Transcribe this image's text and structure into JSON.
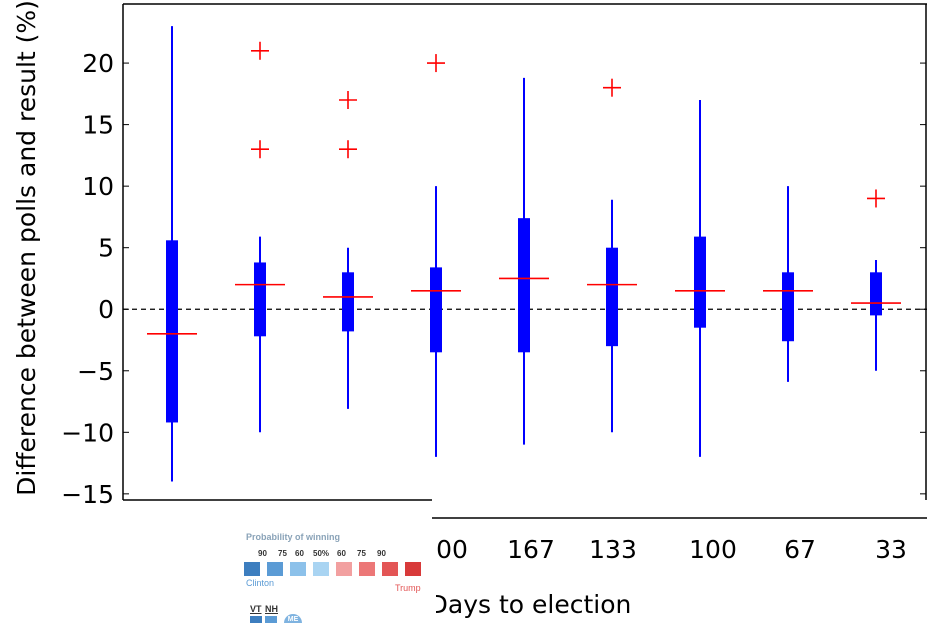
{
  "chart_data": {
    "type": "box",
    "xlabel": "Days to election",
    "ylabel": "Difference between polls and result (%)",
    "x_tick_labels": [
      "00",
      "167",
      "133",
      "100",
      "67",
      "33"
    ],
    "y_ticks": [
      -15,
      -10,
      -5,
      0,
      5,
      10,
      15,
      20
    ],
    "y_tick_labels": [
      "−15",
      "−10",
      "−5",
      "0",
      "5",
      "10",
      "15",
      "20"
    ],
    "ylim": [
      -15.5,
      24.8
    ],
    "xlim": [
      0,
      9
    ],
    "reference_line": {
      "y": 0,
      "style": "dashed"
    },
    "colors": {
      "box": "#0000ff",
      "median": "#ff0000",
      "outlier": "#ff0000"
    },
    "boxes": [
      {
        "x": 1,
        "whisker_low": -14,
        "q1": -9.2,
        "median": -2.0,
        "q3": 5.6,
        "whisker_high": 23,
        "outliers": []
      },
      {
        "x": 2,
        "whisker_low": -10,
        "q1": -2.2,
        "median": 2.0,
        "q3": 3.8,
        "whisker_high": 5.9,
        "outliers": [
          13,
          21
        ]
      },
      {
        "x": 3,
        "whisker_low": -8.1,
        "q1": -1.8,
        "median": 1.0,
        "q3": 3.0,
        "whisker_high": 5.0,
        "outliers": [
          13,
          17
        ]
      },
      {
        "x": 4,
        "whisker_low": -12,
        "q1": -3.5,
        "median": 1.5,
        "q3": 3.4,
        "whisker_high": 10,
        "outliers": [
          20
        ]
      },
      {
        "x": 5,
        "whisker_low": -11,
        "q1": -3.5,
        "median": 2.5,
        "q3": 7.4,
        "whisker_high": 18.8,
        "outliers": []
      },
      {
        "x": 6,
        "whisker_low": -10,
        "q1": -3.0,
        "median": 2.0,
        "q3": 5.0,
        "whisker_high": 8.9,
        "outliers": [
          18
        ]
      },
      {
        "x": 7,
        "whisker_low": -12,
        "q1": -1.5,
        "median": 1.5,
        "q3": 5.9,
        "whisker_high": 17,
        "outliers": []
      },
      {
        "x": 8,
        "whisker_low": -5.9,
        "q1": -2.6,
        "median": 1.5,
        "q3": 3.0,
        "whisker_high": 10,
        "outliers": []
      },
      {
        "x": 9,
        "whisker_low": -5,
        "q1": -0.5,
        "median": 0.5,
        "q3": 3.0,
        "whisker_high": 4.0,
        "outliers": [
          9
        ]
      }
    ]
  },
  "legend_overlay": {
    "title": "Probability of winning",
    "ticks": [
      "90",
      "75",
      "60",
      "50%",
      "60",
      "75",
      "90"
    ],
    "swatch_colors": [
      "#3d7ebf",
      "#5b9bd5",
      "#8cc1ea",
      "#a9d4f2",
      "#f2a0a0",
      "#ec7777",
      "#e35555",
      "#d83a3a"
    ],
    "left_label": "Clinton",
    "right_label": "Trump",
    "states": [
      "VT",
      "NH"
    ],
    "state_badge": "ME"
  }
}
